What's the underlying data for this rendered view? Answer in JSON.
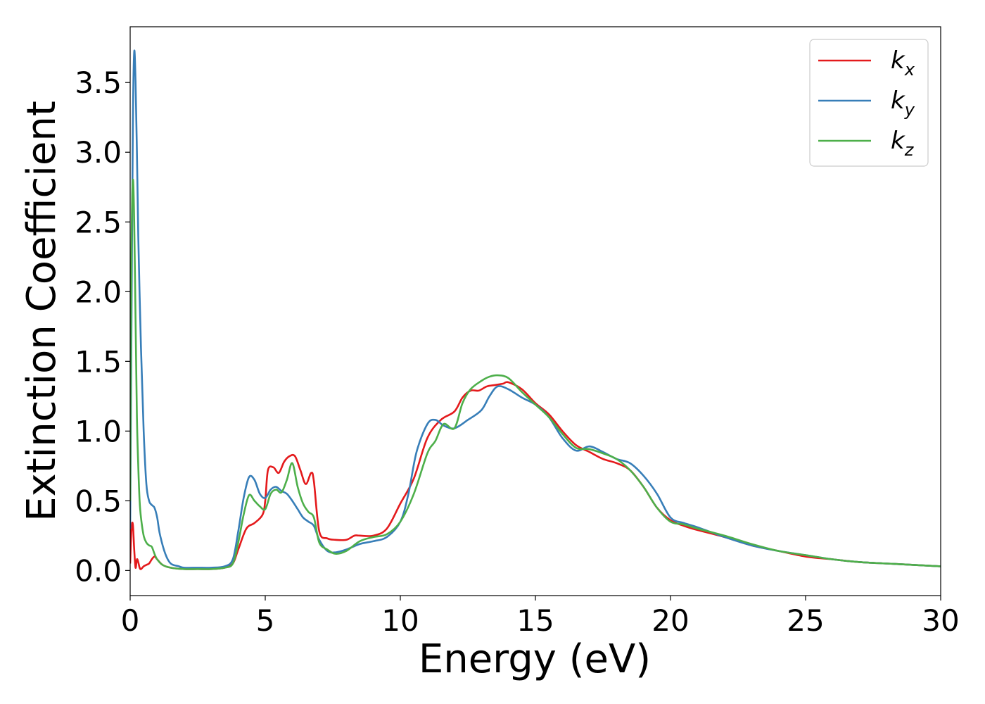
{
  "chart_data": {
    "type": "line",
    "xlabel": "Energy (eV)",
    "ylabel": "Extinction Coefficient",
    "xlim": [
      0,
      30
    ],
    "ylim": [
      -0.18,
      3.9
    ],
    "xticks": [
      0,
      5,
      10,
      15,
      20,
      25,
      30
    ],
    "xtick_labels": [
      "0",
      "5",
      "10",
      "15",
      "20",
      "25",
      "30"
    ],
    "yticks": [
      0.0,
      0.5,
      1.0,
      1.5,
      2.0,
      2.5,
      3.0,
      3.5
    ],
    "ytick_labels": [
      "0.0",
      "0.5",
      "1.0",
      "1.5",
      "2.0",
      "2.5",
      "3.0",
      "3.5"
    ],
    "grid": false,
    "legend_position": "top-right",
    "series": [
      {
        "name": "k_x",
        "label_base": "k",
        "label_sub": "x",
        "color": "#e41a1c",
        "x": [
          0.0,
          0.05,
          0.1,
          0.15,
          0.2,
          0.25,
          0.3,
          0.35,
          0.4,
          0.5,
          0.6,
          0.7,
          0.8,
          0.9,
          1.0,
          1.2,
          1.5,
          2.0,
          2.5,
          3.0,
          3.5,
          3.8,
          4.0,
          4.3,
          4.6,
          4.9,
          5.0,
          5.1,
          5.3,
          5.5,
          5.7,
          5.9,
          6.1,
          6.3,
          6.5,
          6.7,
          6.8,
          7.0,
          7.3,
          7.6,
          8.0,
          8.3,
          8.5,
          9.0,
          9.5,
          10.0,
          10.5,
          11.0,
          11.5,
          12.0,
          12.3,
          12.6,
          12.9,
          13.2,
          13.5,
          13.8,
          14.0,
          14.5,
          15.0,
          15.5,
          16.0,
          16.5,
          17.0,
          17.5,
          18.0,
          18.5,
          19.0,
          19.5,
          20.0,
          20.5,
          21.0,
          22.0,
          23.0,
          24.0,
          25.0,
          26.0,
          27.0,
          28.0,
          29.0,
          30.0
        ],
        "values": [
          0.05,
          0.3,
          0.33,
          0.15,
          0.02,
          0.08,
          0.06,
          0.02,
          0.01,
          0.03,
          0.04,
          0.05,
          0.08,
          0.1,
          0.08,
          0.04,
          0.02,
          0.01,
          0.01,
          0.01,
          0.02,
          0.05,
          0.15,
          0.3,
          0.34,
          0.4,
          0.5,
          0.72,
          0.74,
          0.7,
          0.78,
          0.82,
          0.82,
          0.72,
          0.62,
          0.7,
          0.64,
          0.28,
          0.23,
          0.22,
          0.22,
          0.25,
          0.25,
          0.25,
          0.3,
          0.48,
          0.66,
          0.95,
          1.08,
          1.14,
          1.24,
          1.29,
          1.29,
          1.32,
          1.33,
          1.34,
          1.35,
          1.3,
          1.2,
          1.12,
          1.0,
          0.9,
          0.85,
          0.8,
          0.77,
          0.72,
          0.6,
          0.45,
          0.36,
          0.32,
          0.29,
          0.24,
          0.18,
          0.14,
          0.1,
          0.08,
          0.06,
          0.05,
          0.04,
          0.03
        ]
      },
      {
        "name": "k_y",
        "label_base": "k",
        "label_sub": "y",
        "color": "#377eb8",
        "x": [
          0.0,
          0.05,
          0.1,
          0.15,
          0.2,
          0.25,
          0.3,
          0.4,
          0.5,
          0.6,
          0.7,
          0.8,
          0.9,
          1.0,
          1.1,
          1.3,
          1.5,
          1.8,
          2.0,
          2.5,
          3.0,
          3.5,
          3.8,
          4.0,
          4.2,
          4.4,
          4.6,
          4.8,
          5.0,
          5.2,
          5.4,
          5.6,
          5.8,
          6.0,
          6.2,
          6.4,
          6.6,
          6.8,
          7.0,
          7.3,
          7.6,
          8.0,
          8.5,
          9.0,
          9.5,
          10.0,
          10.3,
          10.6,
          11.0,
          11.3,
          11.6,
          12.0,
          12.5,
          13.0,
          13.3,
          13.6,
          14.0,
          14.5,
          15.0,
          15.5,
          16.0,
          16.5,
          17.0,
          17.5,
          18.0,
          18.5,
          19.0,
          19.5,
          20.0,
          20.5,
          21.0,
          22.0,
          23.0,
          24.0,
          25.0,
          26.0,
          27.0,
          28.0,
          29.0,
          30.0
        ],
        "values": [
          0.3,
          1.8,
          3.2,
          3.72,
          3.5,
          3.0,
          2.4,
          1.6,
          1.0,
          0.62,
          0.5,
          0.47,
          0.45,
          0.38,
          0.26,
          0.12,
          0.05,
          0.03,
          0.02,
          0.02,
          0.02,
          0.03,
          0.08,
          0.28,
          0.52,
          0.67,
          0.65,
          0.55,
          0.52,
          0.58,
          0.6,
          0.57,
          0.55,
          0.5,
          0.44,
          0.38,
          0.35,
          0.32,
          0.22,
          0.14,
          0.13,
          0.15,
          0.19,
          0.21,
          0.24,
          0.35,
          0.55,
          0.85,
          1.05,
          1.08,
          1.04,
          1.02,
          1.08,
          1.15,
          1.25,
          1.32,
          1.3,
          1.24,
          1.19,
          1.1,
          0.95,
          0.86,
          0.89,
          0.85,
          0.8,
          0.77,
          0.68,
          0.55,
          0.38,
          0.34,
          0.31,
          0.24,
          0.18,
          0.14,
          0.11,
          0.08,
          0.06,
          0.05,
          0.04,
          0.03
        ]
      },
      {
        "name": "k_z",
        "label_base": "k",
        "label_sub": "z",
        "color": "#4daf4a",
        "x": [
          0.0,
          0.05,
          0.1,
          0.15,
          0.2,
          0.25,
          0.3,
          0.35,
          0.4,
          0.5,
          0.6,
          0.7,
          0.8,
          0.9,
          1.0,
          1.2,
          1.5,
          2.0,
          2.5,
          3.0,
          3.5,
          3.8,
          4.0,
          4.2,
          4.4,
          4.6,
          4.8,
          5.0,
          5.2,
          5.4,
          5.6,
          5.8,
          6.0,
          6.2,
          6.4,
          6.6,
          6.8,
          7.0,
          7.3,
          7.6,
          8.0,
          8.5,
          9.0,
          9.5,
          10.0,
          10.5,
          11.0,
          11.3,
          11.6,
          12.0,
          12.3,
          12.6,
          13.0,
          13.3,
          13.6,
          14.0,
          14.5,
          15.0,
          15.5,
          16.0,
          16.5,
          17.0,
          17.5,
          18.0,
          18.5,
          19.0,
          19.5,
          20.0,
          20.5,
          21.0,
          22.0,
          23.0,
          24.0,
          25.0,
          26.0,
          27.0,
          28.0,
          29.0,
          30.0
        ],
        "values": [
          0.5,
          2.3,
          2.8,
          2.5,
          1.8,
          1.1,
          0.75,
          0.5,
          0.38,
          0.25,
          0.2,
          0.18,
          0.17,
          0.12,
          0.08,
          0.04,
          0.02,
          0.01,
          0.01,
          0.01,
          0.02,
          0.05,
          0.2,
          0.4,
          0.54,
          0.5,
          0.46,
          0.44,
          0.55,
          0.58,
          0.56,
          0.65,
          0.77,
          0.6,
          0.48,
          0.42,
          0.38,
          0.2,
          0.15,
          0.12,
          0.14,
          0.21,
          0.24,
          0.26,
          0.35,
          0.55,
          0.84,
          0.93,
          1.05,
          1.02,
          1.2,
          1.3,
          1.36,
          1.39,
          1.4,
          1.38,
          1.28,
          1.19,
          1.1,
          0.98,
          0.88,
          0.87,
          0.84,
          0.8,
          0.72,
          0.6,
          0.45,
          0.35,
          0.33,
          0.3,
          0.25,
          0.19,
          0.14,
          0.11,
          0.08,
          0.06,
          0.05,
          0.04,
          0.03
        ]
      }
    ]
  }
}
